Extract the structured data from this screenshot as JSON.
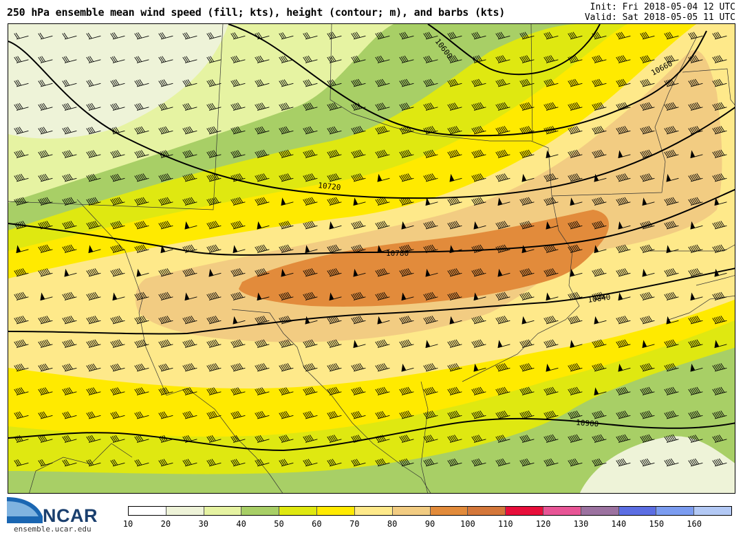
{
  "header": {
    "title": "250 hPa ensemble mean wind speed (fill; kts), height (contour; m), and barbs (kts)",
    "init": "Init: Fri 2018-05-04 12 UTC",
    "valid": "Valid: Sat 2018-05-05 11 UTC"
  },
  "contour_labels": [
    "10600",
    "10660",
    "10720",
    "10780",
    "10840",
    "10900"
  ],
  "colorbar": {
    "ticks": [
      "10",
      "20",
      "30",
      "40",
      "50",
      "60",
      "70",
      "80",
      "90",
      "100",
      "110",
      "120",
      "130",
      "140",
      "150",
      "160"
    ],
    "colors": [
      "#ffffff",
      "#eef3d8",
      "#e6f3a2",
      "#a8cf66",
      "#dfe811",
      "#ffea00",
      "#fee98a",
      "#f2cc82",
      "#e28b3b",
      "#d4773a",
      "#e80f3b",
      "#e85596",
      "#9c72a0",
      "#5c6ee3",
      "#7b9cf0",
      "#b3c9f5"
    ]
  },
  "logo": {
    "name": "NCAR",
    "url": "ensemble.ucar.edu"
  }
}
